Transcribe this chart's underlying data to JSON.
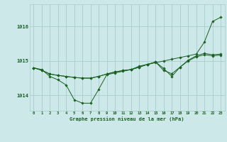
{
  "background_color": "#cce8e8",
  "grid_color": "#aacccc",
  "line_color": "#1a6020",
  "marker_color": "#1a6020",
  "title": "Graphe pression niveau de la mer (hPa)",
  "yticks": [
    1014,
    1015,
    1016
  ],
  "ylim": [
    1013.55,
    1016.65
  ],
  "xlim": [
    -0.5,
    23.5
  ],
  "line1": [
    1014.8,
    1014.75,
    1014.55,
    1014.45,
    1014.3,
    1013.87,
    1013.77,
    1013.77,
    1014.17,
    1014.6,
    1014.65,
    1014.7,
    1014.75,
    1014.85,
    1014.9,
    1014.95,
    1015.0,
    1015.05,
    1015.1,
    1015.15,
    1015.2,
    1015.55,
    1016.15,
    1016.27
  ],
  "line2": [
    1014.8,
    1014.73,
    1014.62,
    1014.58,
    1014.55,
    1014.52,
    1014.5,
    1014.5,
    1014.55,
    1014.62,
    1014.68,
    1014.72,
    1014.75,
    1014.82,
    1014.9,
    1014.97,
    1014.72,
    1014.63,
    1014.82,
    1015.0,
    1015.12,
    1015.18,
    1015.15,
    1015.17
  ],
  "line3": [
    1014.8,
    1014.73,
    1014.62,
    1014.58,
    1014.55,
    1014.52,
    1014.5,
    1014.5,
    1014.55,
    1014.62,
    1014.68,
    1014.72,
    1014.75,
    1014.82,
    1014.9,
    1014.97,
    1014.78,
    1014.55,
    1014.82,
    1015.02,
    1015.15,
    1015.22,
    1015.18,
    1015.2
  ],
  "marker_size": 1.8,
  "line_width": 0.7,
  "xlabel_fontsize": 5.0,
  "ylabel_fontsize": 5.0,
  "xtick_fontsize": 4.0,
  "ytick_fontsize": 5.0
}
